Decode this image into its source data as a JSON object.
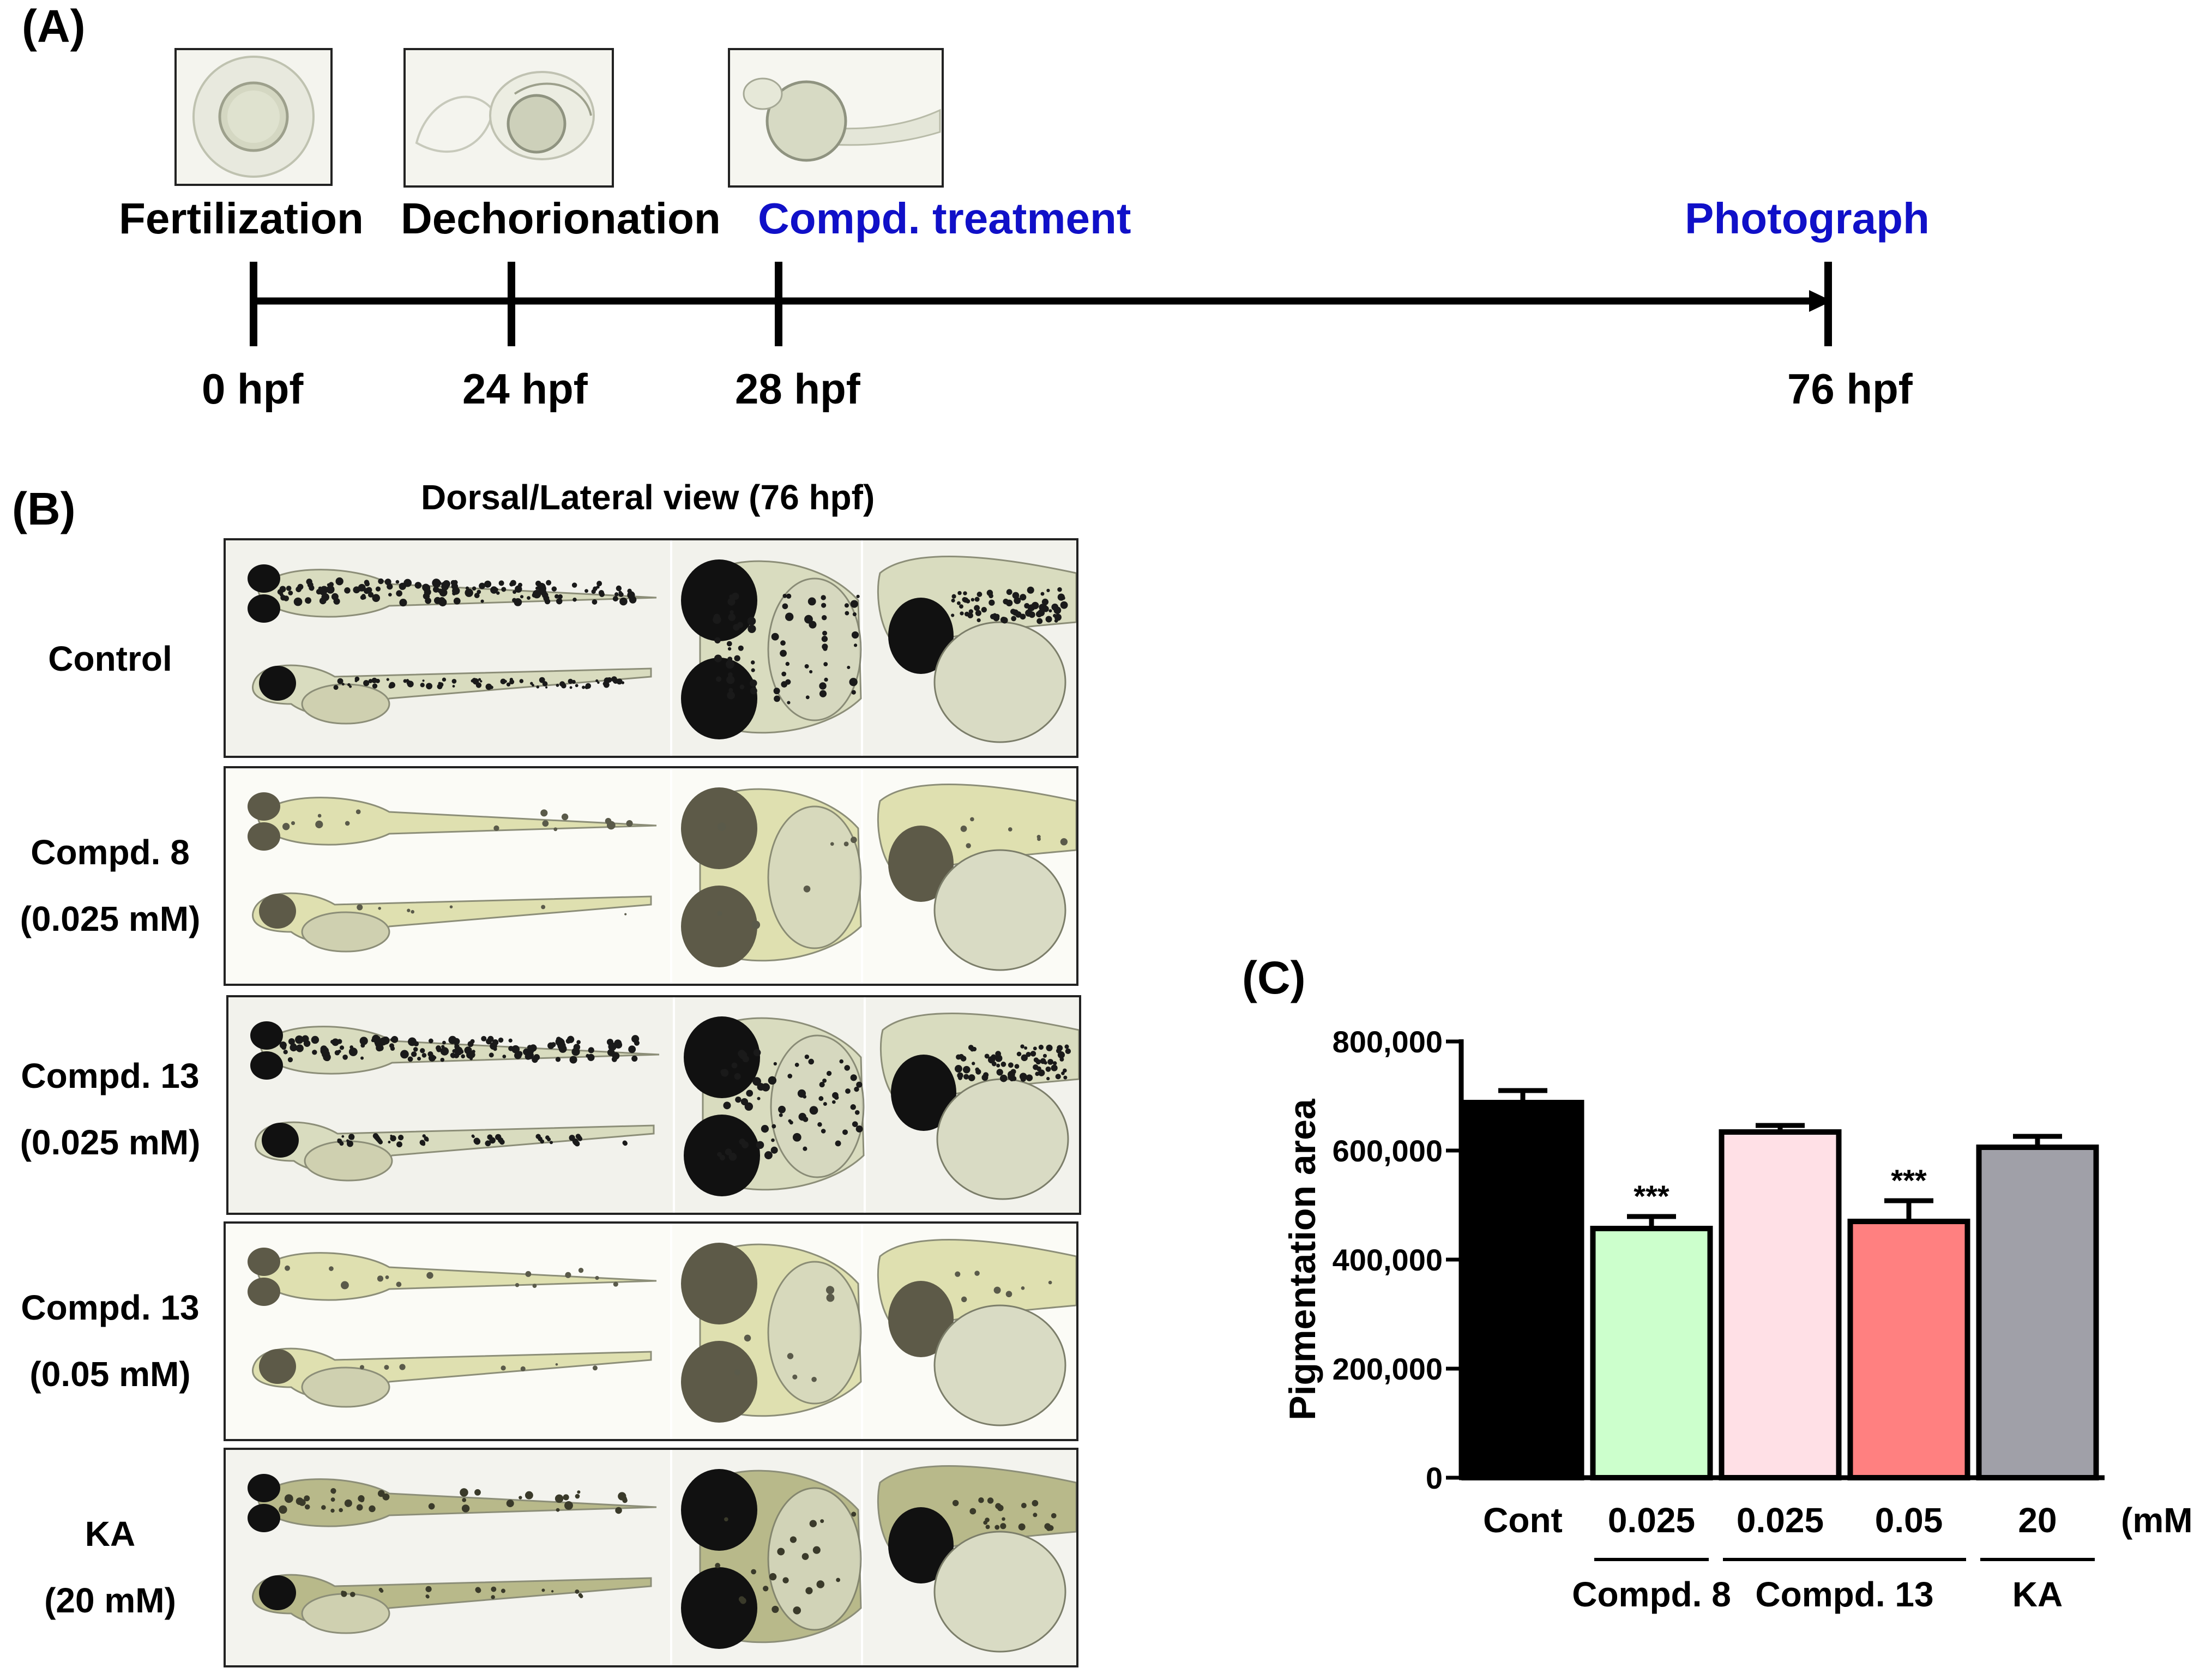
{
  "panel_a": {
    "letter": "(A)",
    "steps": [
      {
        "label": "Fertilization",
        "time": "0 hpf"
      },
      {
        "label": "Dechorionation",
        "time": "24 hpf"
      },
      {
        "label": "Compd. treatment",
        "time": "28 hpf"
      },
      {
        "label": "Photograph",
        "time": "76 hpf"
      }
    ]
  },
  "panel_b": {
    "letter": "(B)",
    "title": "Dorsal/Lateral view (76 hpf)",
    "rows": [
      {
        "line1": "Control",
        "line2": "",
        "pigment": "dark"
      },
      {
        "line1": "Compd. 8",
        "line2": "(0.025 mM)",
        "pigment": "light"
      },
      {
        "line1": "Compd. 13",
        "line2": "(0.025 mM)",
        "pigment": "dark"
      },
      {
        "line1": "Compd. 13",
        "line2": "(0.05 mM)",
        "pigment": "light"
      },
      {
        "line1": "KA",
        "line2": "(20 mM)",
        "pigment": "medium"
      }
    ]
  },
  "panel_c": {
    "letter": "(C)"
  },
  "chart_data": {
    "type": "bar",
    "ylabel": "Pigmentation area",
    "xlabel": "",
    "ylim": [
      0,
      800000
    ],
    "yticks": [
      "0",
      "200,000",
      "400,000",
      "600,000",
      "800,000"
    ],
    "categories": [
      "Cont",
      "0.025",
      "0.025",
      "0.05",
      "20"
    ],
    "unit_label": "(mM)",
    "groups": [
      {
        "label": "Compd. 8",
        "from": 1,
        "to": 1
      },
      {
        "label": "Compd. 13",
        "from": 2,
        "to": 3
      },
      {
        "label": "KA",
        "from": 4,
        "to": 4
      }
    ],
    "values": [
      688000,
      457000,
      634000,
      470000,
      606000
    ],
    "errors": [
      22000,
      22000,
      12000,
      38000,
      20000
    ],
    "significance": [
      "",
      "***",
      "",
      "***",
      ""
    ],
    "colors": [
      "#000000",
      "#ccffcc",
      "#ffe0e6",
      "#ff8080",
      "#a0a0a8"
    ],
    "grid": false
  }
}
